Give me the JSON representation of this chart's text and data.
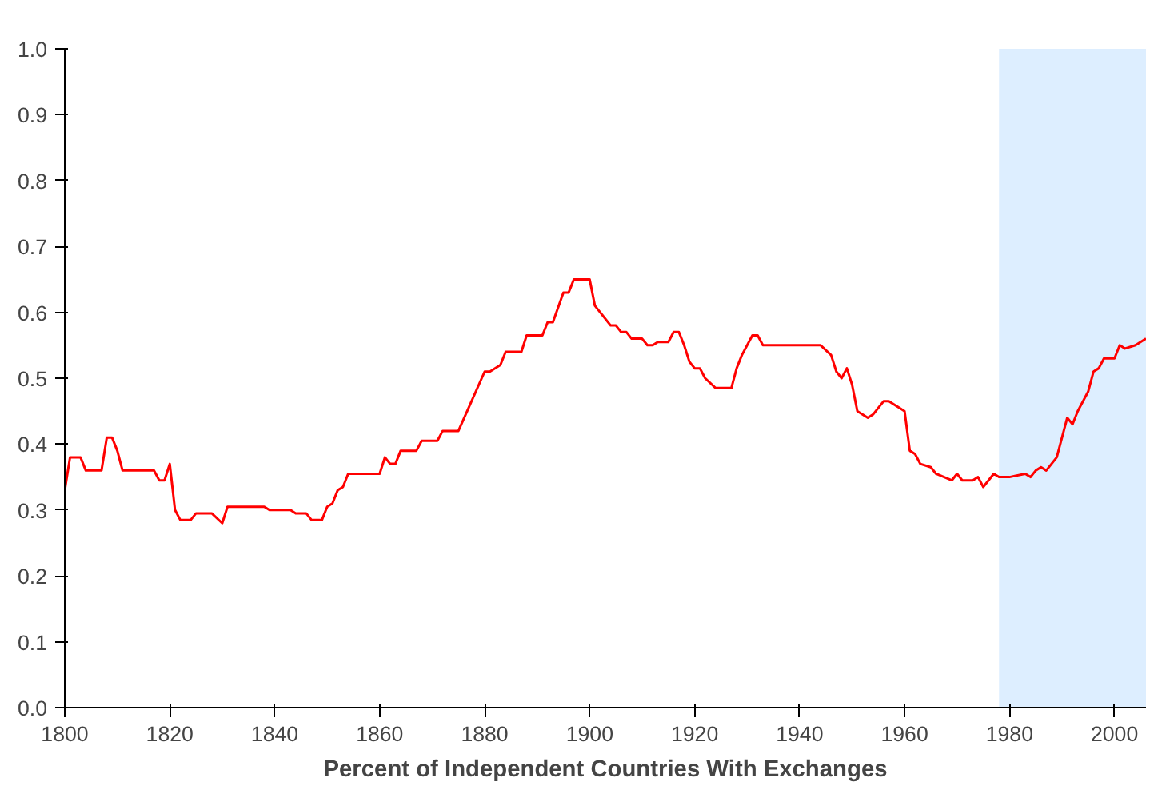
{
  "chart_data": {
    "type": "line",
    "title": "Percent of Independent Countries With Exchanges",
    "xlim": [
      1800,
      2006
    ],
    "xticks": [
      1800,
      1820,
      1840,
      1860,
      1880,
      1900,
      1920,
      1940,
      1960,
      1980,
      2000
    ],
    "ylim": [
      0,
      1
    ],
    "yticks": [
      {
        "value": 0,
        "label": "0.0"
      },
      {
        "value": 0.1,
        "label": "0.1"
      },
      {
        "value": 0.2,
        "label": "0.2"
      },
      {
        "value": 0.3,
        "label": "0.3"
      },
      {
        "value": 0.4,
        "label": "0.4"
      },
      {
        "value": 0.5,
        "label": "0.5"
      },
      {
        "value": 0.6,
        "label": "0.6"
      },
      {
        "value": 0.7,
        "label": "0.7"
      },
      {
        "value": 0.8,
        "label": "0.8"
      },
      {
        "value": 0.9,
        "label": "0.9"
      },
      {
        "value": 1,
        "label": "1.0"
      }
    ],
    "grid": false,
    "marker": "none",
    "line_style": "solid",
    "bands": [
      {
        "axis": "x",
        "from": 1978,
        "to": 2006,
        "color": "#ddeeff"
      }
    ],
    "x": [
      1800,
      1801,
      1803,
      1804,
      1807,
      1808,
      1809,
      1810,
      1811,
      1817,
      1818,
      1819,
      1820,
      1821,
      1822,
      1824,
      1825,
      1828,
      1830,
      1831,
      1838,
      1839,
      1843,
      1844,
      1846,
      1847,
      1849,
      1850,
      1851,
      1852,
      1853,
      1854,
      1860,
      1861,
      1862,
      1863,
      1864,
      1867,
      1868,
      1871,
      1872,
      1875,
      1880,
      1881,
      1883,
      1884,
      1887,
      1888,
      1891,
      1892,
      1893,
      1895,
      1896,
      1897,
      1900,
      1901,
      1904,
      1905,
      1906,
      1907,
      1908,
      1910,
      1911,
      1912,
      1913,
      1915,
      1916,
      1917,
      1918,
      1919,
      1920,
      1921,
      1922,
      1924,
      1927,
      1928,
      1929,
      1931,
      1932,
      1933,
      1944,
      1946,
      1947,
      1948,
      1949,
      1950,
      1951,
      1953,
      1954,
      1956,
      1957,
      1959,
      1960,
      1961,
      1962,
      1963,
      1965,
      1966,
      1969,
      1970,
      1971,
      1973,
      1974,
      1975,
      1977,
      1978,
      1980,
      1983,
      1984,
      1985,
      1986,
      1987,
      1989,
      1991,
      1992,
      1993,
      1995,
      1996,
      1997,
      1998,
      2000,
      2001,
      2002,
      2004,
      2006
    ],
    "series": [
      {
        "color": "#ff0000",
        "values": [
          0.33,
          0.38,
          0.38,
          0.36,
          0.36,
          0.41,
          0.41,
          0.39,
          0.36,
          0.36,
          0.345,
          0.345,
          0.37,
          0.3,
          0.285,
          0.285,
          0.295,
          0.295,
          0.28,
          0.305,
          0.305,
          0.3,
          0.3,
          0.295,
          0.295,
          0.285,
          0.285,
          0.305,
          0.31,
          0.33,
          0.335,
          0.355,
          0.355,
          0.38,
          0.37,
          0.37,
          0.39,
          0.39,
          0.405,
          0.405,
          0.42,
          0.42,
          0.51,
          0.51,
          0.52,
          0.54,
          0.54,
          0.565,
          0.565,
          0.585,
          0.585,
          0.63,
          0.63,
          0.65,
          0.65,
          0.61,
          0.58,
          0.58,
          0.57,
          0.57,
          0.56,
          0.56,
          0.55,
          0.55,
          0.555,
          0.555,
          0.57,
          0.57,
          0.55,
          0.525,
          0.515,
          0.515,
          0.5,
          0.485,
          0.485,
          0.515,
          0.535,
          0.565,
          0.565,
          0.55,
          0.55,
          0.535,
          0.51,
          0.5,
          0.515,
          0.49,
          0.45,
          0.44,
          0.445,
          0.465,
          0.465,
          0.455,
          0.45,
          0.39,
          0.385,
          0.37,
          0.365,
          0.355,
          0.345,
          0.355,
          0.345,
          0.345,
          0.35,
          0.335,
          0.355,
          0.35,
          0.35,
          0.355,
          0.35,
          0.36,
          0.365,
          0.36,
          0.38,
          0.44,
          0.43,
          0.45,
          0.48,
          0.51,
          0.515,
          0.53,
          0.53,
          0.55,
          0.545,
          0.55,
          0.56
        ]
      }
    ]
  }
}
